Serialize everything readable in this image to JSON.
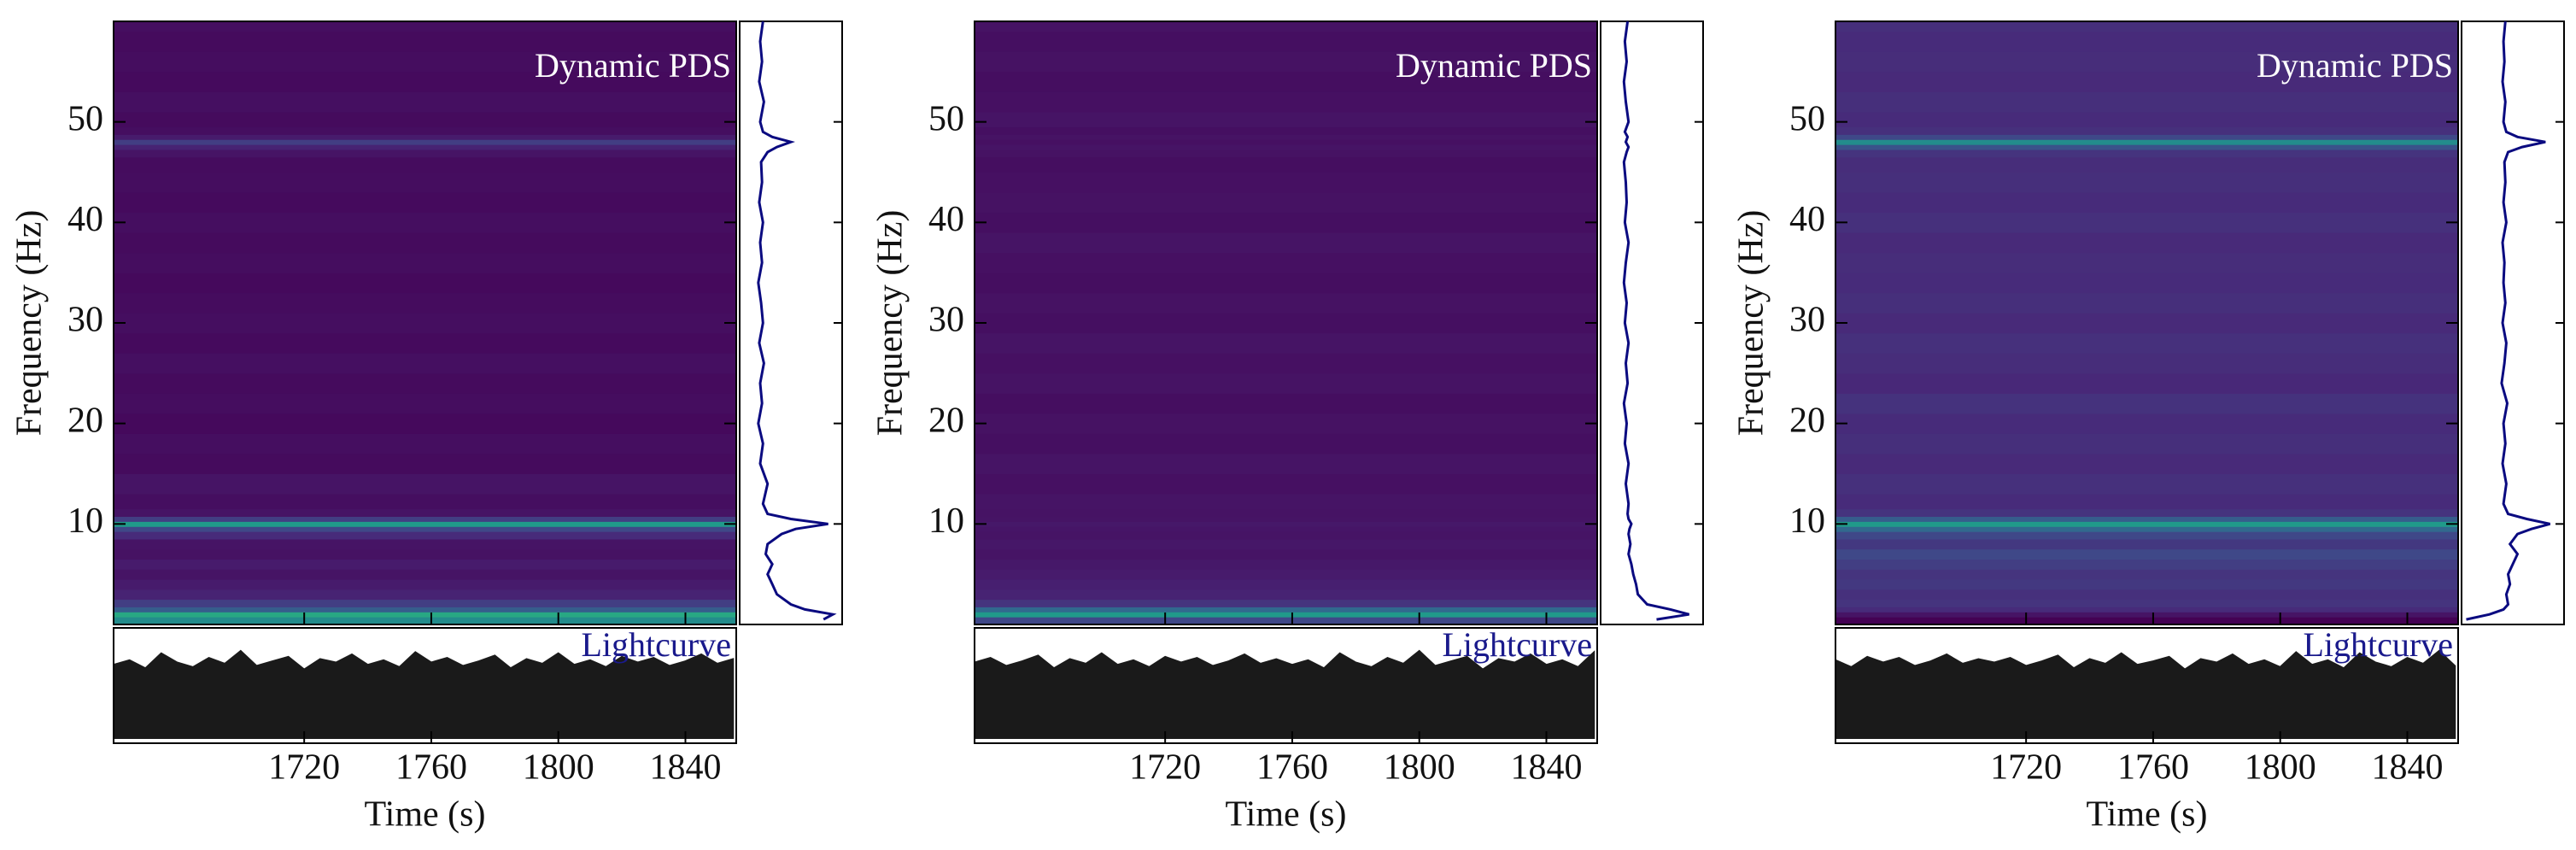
{
  "chart_data": [
    {
      "type": "spectrogram",
      "annotation": "Dynamic PDS",
      "lightcurve_label": "Lightcurve",
      "xlabel": "Time (s)",
      "ylabel": "Frequency (Hz)",
      "xlim": [
        1660,
        1856
      ],
      "xticks": [
        1720,
        1760,
        1800,
        1840
      ],
      "ylim": [
        0,
        60
      ],
      "yticks": [
        10,
        20,
        30,
        40,
        50
      ],
      "pds": {
        "color": "#0a0a80",
        "xlim": [
          0,
          1.1
        ],
        "frequency": [
          0.5,
          1,
          1.5,
          2,
          3,
          4,
          5,
          6,
          7,
          8,
          9,
          9.5,
          10,
          10.5,
          11,
          12,
          14,
          16,
          18,
          20,
          22,
          24,
          26,
          28,
          30,
          32,
          34,
          36,
          38,
          40,
          42,
          44,
          46,
          47,
          47.5,
          48,
          48.5,
          49,
          50,
          52,
          54,
          56,
          58,
          60
        ],
        "power": [
          0.9,
          1.0,
          0.7,
          0.55,
          0.4,
          0.35,
          0.3,
          0.35,
          0.28,
          0.3,
          0.45,
          0.6,
          0.95,
          0.55,
          0.3,
          0.25,
          0.3,
          0.22,
          0.25,
          0.2,
          0.24,
          0.22,
          0.26,
          0.21,
          0.25,
          0.23,
          0.2,
          0.24,
          0.22,
          0.25,
          0.21,
          0.24,
          0.23,
          0.3,
          0.4,
          0.55,
          0.35,
          0.25,
          0.22,
          0.26,
          0.21,
          0.24,
          0.22,
          0.25
        ]
      },
      "lightcurve": {
        "color": "#1a1a1a",
        "ylim": [
          0,
          1
        ],
        "time": [
          1660,
          1665,
          1670,
          1675,
          1680,
          1685,
          1690,
          1695,
          1700,
          1705,
          1710,
          1715,
          1720,
          1725,
          1730,
          1735,
          1740,
          1745,
          1750,
          1755,
          1760,
          1765,
          1770,
          1775,
          1780,
          1785,
          1790,
          1795,
          1800,
          1805,
          1810,
          1815,
          1820,
          1825,
          1830,
          1835,
          1840,
          1845,
          1850,
          1855
        ],
        "values": [
          0.68,
          0.72,
          0.65,
          0.78,
          0.7,
          0.66,
          0.74,
          0.69,
          0.8,
          0.67,
          0.71,
          0.75,
          0.64,
          0.73,
          0.7,
          0.77,
          0.68,
          0.72,
          0.66,
          0.79,
          0.7,
          0.74,
          0.67,
          0.71,
          0.76,
          0.65,
          0.73,
          0.69,
          0.78,
          0.68,
          0.72,
          0.66,
          0.75,
          0.7,
          0.74,
          0.67,
          0.71,
          0.77,
          0.69,
          0.73
        ]
      }
    },
    {
      "type": "spectrogram",
      "annotation": "Dynamic PDS",
      "lightcurve_label": "Lightcurve",
      "xlabel": "Time (s)",
      "ylabel": "Frequency (Hz)",
      "xlim": [
        1660,
        1856
      ],
      "xticks": [
        1720,
        1760,
        1800,
        1840
      ],
      "ylim": [
        0,
        60
      ],
      "yticks": [
        10,
        20,
        30,
        40,
        50
      ],
      "pds": {
        "color": "#0a0a80",
        "xlim": [
          0,
          1.1
        ],
        "frequency": [
          0.5,
          1,
          1.5,
          2,
          3,
          4,
          5,
          6,
          7,
          8,
          9,
          9.5,
          10,
          10.5,
          11,
          12,
          14,
          16,
          18,
          20,
          22,
          24,
          26,
          28,
          30,
          32,
          34,
          36,
          38,
          40,
          42,
          44,
          46,
          47,
          47.5,
          48,
          48.5,
          49,
          50,
          52,
          54,
          56,
          58,
          60
        ],
        "power": [
          0.6,
          0.95,
          0.75,
          0.5,
          0.4,
          0.38,
          0.35,
          0.33,
          0.3,
          0.32,
          0.3,
          0.31,
          0.33,
          0.3,
          0.29,
          0.3,
          0.27,
          0.3,
          0.26,
          0.28,
          0.25,
          0.29,
          0.27,
          0.3,
          0.26,
          0.28,
          0.25,
          0.27,
          0.3,
          0.26,
          0.28,
          0.27,
          0.25,
          0.28,
          0.3,
          0.27,
          0.29,
          0.26,
          0.3,
          0.27,
          0.25,
          0.28,
          0.26,
          0.29
        ]
      },
      "lightcurve": {
        "color": "#1a1a1a",
        "ylim": [
          0,
          1
        ],
        "time": [
          1660,
          1665,
          1670,
          1675,
          1680,
          1685,
          1690,
          1695,
          1700,
          1705,
          1710,
          1715,
          1720,
          1725,
          1730,
          1735,
          1740,
          1745,
          1750,
          1755,
          1760,
          1765,
          1770,
          1775,
          1780,
          1785,
          1790,
          1795,
          1800,
          1805,
          1810,
          1815,
          1820,
          1825,
          1830,
          1835,
          1840,
          1845,
          1850,
          1855
        ],
        "values": [
          0.7,
          0.74,
          0.67,
          0.71,
          0.76,
          0.65,
          0.73,
          0.69,
          0.78,
          0.68,
          0.72,
          0.66,
          0.75,
          0.7,
          0.74,
          0.67,
          0.71,
          0.77,
          0.69,
          0.73,
          0.68,
          0.72,
          0.65,
          0.78,
          0.7,
          0.66,
          0.74,
          0.69,
          0.8,
          0.67,
          0.71,
          0.75,
          0.64,
          0.73,
          0.7,
          0.77,
          0.68,
          0.72,
          0.66,
          0.79
        ]
      }
    },
    {
      "type": "spectrogram",
      "annotation": "Dynamic PDS",
      "lightcurve_label": "Lightcurve",
      "xlabel": "Time (s)",
      "ylabel": "Frequency (Hz)",
      "xlim": [
        1660,
        1856
      ],
      "xticks": [
        1720,
        1760,
        1800,
        1840
      ],
      "ylim": [
        0,
        60
      ],
      "yticks": [
        10,
        20,
        30,
        40,
        50
      ],
      "pds": {
        "color": "#0a0a80",
        "xlim": [
          0,
          1.1
        ],
        "frequency": [
          0.5,
          1,
          1.5,
          2,
          3,
          4,
          5,
          6,
          7,
          8,
          9,
          9.5,
          10,
          10.5,
          11,
          12,
          14,
          16,
          18,
          20,
          22,
          24,
          26,
          28,
          30,
          32,
          34,
          36,
          38,
          40,
          42,
          44,
          46,
          47,
          47.5,
          48,
          48.5,
          49,
          50,
          52,
          54,
          56,
          58,
          60
        ],
        "power": [
          0.05,
          0.3,
          0.45,
          0.5,
          0.48,
          0.52,
          0.5,
          0.55,
          0.6,
          0.52,
          0.6,
          0.75,
          0.95,
          0.7,
          0.5,
          0.45,
          0.48,
          0.44,
          0.47,
          0.45,
          0.49,
          0.43,
          0.46,
          0.48,
          0.44,
          0.47,
          0.45,
          0.46,
          0.44,
          0.48,
          0.45,
          0.47,
          0.46,
          0.5,
          0.65,
          0.9,
          0.6,
          0.48,
          0.45,
          0.47,
          0.44,
          0.46,
          0.45,
          0.47
        ]
      },
      "lightcurve": {
        "color": "#1a1a1a",
        "ylim": [
          0,
          1
        ],
        "time": [
          1660,
          1665,
          1670,
          1675,
          1680,
          1685,
          1690,
          1695,
          1700,
          1705,
          1710,
          1715,
          1720,
          1725,
          1730,
          1735,
          1740,
          1745,
          1750,
          1755,
          1760,
          1765,
          1770,
          1775,
          1780,
          1785,
          1790,
          1795,
          1800,
          1805,
          1810,
          1815,
          1820,
          1825,
          1830,
          1835,
          1840,
          1845,
          1850,
          1855
        ],
        "values": [
          0.72,
          0.66,
          0.75,
          0.7,
          0.74,
          0.67,
          0.71,
          0.77,
          0.69,
          0.73,
          0.7,
          0.74,
          0.67,
          0.71,
          0.76,
          0.65,
          0.73,
          0.69,
          0.78,
          0.68,
          0.71,
          0.75,
          0.64,
          0.73,
          0.7,
          0.77,
          0.68,
          0.72,
          0.66,
          0.79,
          0.68,
          0.72,
          0.65,
          0.78,
          0.7,
          0.66,
          0.74,
          0.69,
          0.8,
          0.67
        ]
      }
    }
  ]
}
